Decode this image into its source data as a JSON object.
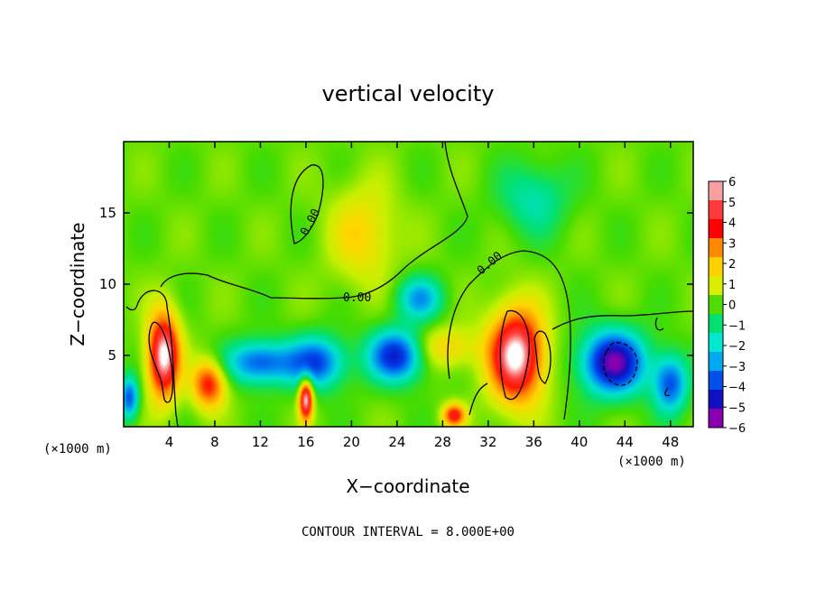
{
  "chart_data": {
    "type": "heatmap",
    "title": "vertical velocity",
    "xlabel": "X−coordinate",
    "ylabel": "Z−coordinate",
    "x_unit_left": "(×1000 m)",
    "x_unit_right": "(×1000 m)",
    "footer": "CONTOUR INTERVAL = 8.000E+00",
    "xlim": [
      0,
      50
    ],
    "ylim": [
      0,
      20
    ],
    "x_ticks": [
      4,
      8,
      12,
      16,
      20,
      24,
      28,
      32,
      36,
      40,
      44,
      48
    ],
    "x_tick_labels": [
      "4",
      "8",
      "12",
      "16",
      "20",
      "24",
      "28",
      "32",
      "36",
      "40",
      "44",
      "48"
    ],
    "y_ticks": [
      5,
      10,
      15
    ],
    "y_tick_labels": [
      "5",
      "10",
      "15"
    ],
    "colorbar": {
      "levels": [
        6,
        5,
        4,
        3,
        2,
        1,
        0,
        -1,
        -2,
        -3,
        -4,
        -5,
        -6
      ],
      "labels": [
        "6",
        "5",
        "4",
        "3",
        "2",
        "1",
        "0",
        "−1",
        "−2",
        "−3",
        "−4",
        "−5",
        "−6"
      ],
      "colors": [
        "#f7a0a0",
        "#ff3a3a",
        "#ff0000",
        "#ff8a00",
        "#ffd000",
        "#d8f000",
        "#50dc00",
        "#00e070",
        "#00e8d0",
        "#00a8f0",
        "#0050e8",
        "#1010c0",
        "#8a00b0"
      ]
    },
    "contour_labels": [
      "0.00",
      "0.00",
      "0.00"
    ],
    "features": [
      {
        "x": 3.5,
        "z": 5.0,
        "w": 6,
        "sx": 1.4,
        "sz": 3.0
      },
      {
        "x": 7.5,
        "z": 3.0,
        "w": 4,
        "sx": 1.5,
        "sz": 1.7
      },
      {
        "x": 16.0,
        "z": 2.0,
        "w": 6,
        "sx": 0.6,
        "sz": 1.5
      },
      {
        "x": 34.5,
        "z": 5.0,
        "w": 6,
        "sx": 2.4,
        "sz": 3.3
      },
      {
        "x": 29.0,
        "z": 0.8,
        "w": 4,
        "sx": 1.0,
        "sz": 0.8
      },
      {
        "x": 21.0,
        "z": 13.5,
        "w": 1.8,
        "sx": 3.0,
        "sz": 3.5
      },
      {
        "x": 28.0,
        "z": 5.5,
        "w": 2,
        "sx": 3.0,
        "sz": 1.5
      },
      {
        "x": 12.0,
        "z": 4.5,
        "w": -4,
        "sx": 3.0,
        "sz": 1.5
      },
      {
        "x": 17.0,
        "z": 4.5,
        "w": -4,
        "sx": 2.5,
        "sz": 1.8
      },
      {
        "x": 24.0,
        "z": 5.0,
        "w": -5,
        "sx": 2.5,
        "sz": 1.8
      },
      {
        "x": 26.0,
        "z": 9.0,
        "w": -3,
        "sx": 2.0,
        "sz": 1.5
      },
      {
        "x": 43.0,
        "z": 4.5,
        "w": -6,
        "sx": 2.8,
        "sz": 2.2
      },
      {
        "x": 48.0,
        "z": 3.0,
        "w": -4,
        "sx": 1.5,
        "sz": 2.0
      },
      {
        "x": 36.0,
        "z": 16.0,
        "w": -1.8,
        "sx": 3.0,
        "sz": 2.5
      },
      {
        "x": 0.5,
        "z": 2.0,
        "w": -4,
        "sx": 0.8,
        "sz": 1.5
      }
    ]
  }
}
